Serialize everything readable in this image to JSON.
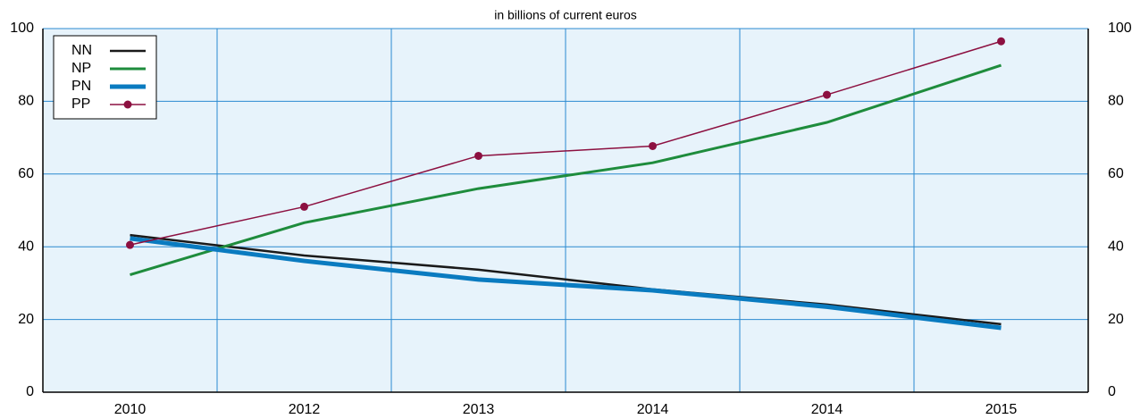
{
  "chart_data": {
    "type": "line",
    "subtitle": "in billions of current euros",
    "categories": [
      "2010",
      "2012",
      "2013",
      "2014",
      "2014",
      "2015"
    ],
    "series": [
      {
        "name": "NN",
        "color": "#1a1a1a",
        "values": [
          43.2,
          37.6,
          33.7,
          28.3,
          24.1,
          18.7
        ]
      },
      {
        "name": "NP",
        "color": "#1e8c3c",
        "values": [
          32.3,
          46.6,
          56.0,
          63.1,
          74.2,
          89.9
        ]
      },
      {
        "name": "PN",
        "color": "#0a7bc0",
        "values": [
          42.3,
          36.1,
          31.0,
          28.0,
          23.5,
          17.7
        ]
      },
      {
        "name": "PP",
        "color": "#8c1040",
        "values": [
          40.5,
          51.0,
          65.0,
          67.7,
          81.8,
          96.5
        ]
      }
    ],
    "ylim": [
      0,
      100
    ],
    "yticks": [
      0,
      20,
      40,
      60,
      80,
      100
    ],
    "grid": true,
    "legend": "top-left"
  }
}
